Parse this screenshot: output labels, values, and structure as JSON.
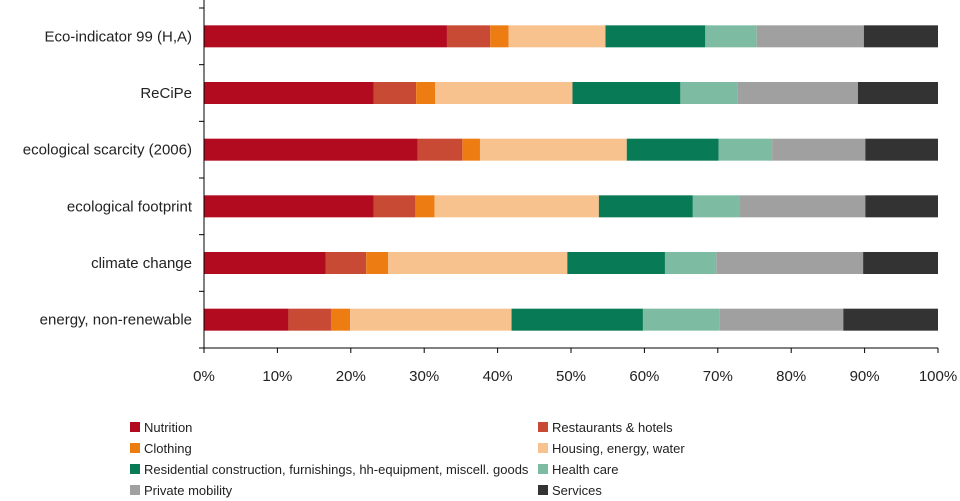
{
  "chart_data": {
    "type": "bar",
    "orientation": "horizontal",
    "stacked": "percent",
    "categories": [
      "Eco-indicator 99 (H,A)",
      "ReCiPe",
      "ecological scarcity (2006)",
      "ecological footprint",
      "climate change",
      "energy, non-renewable"
    ],
    "series": [
      {
        "name": "Nutrition",
        "color": "#b20a1e",
        "values": [
          33.1,
          23.1,
          29.1,
          23.1,
          16.6,
          11.5
        ]
      },
      {
        "name": "Restaurants & hotels",
        "color": "#c84a35",
        "values": [
          5.9,
          5.8,
          6.1,
          5.7,
          5.5,
          5.8
        ]
      },
      {
        "name": "Clothing",
        "color": "#ed7d12",
        "values": [
          2.5,
          2.6,
          2.4,
          2.6,
          3.0,
          2.6
        ]
      },
      {
        "name": "Housing, energy, water",
        "color": "#f7c28e",
        "values": [
          13.2,
          18.7,
          20.0,
          22.4,
          24.4,
          22.0
        ]
      },
      {
        "name": "Residential construction, furnishings, hh-equipment, miscell. goods",
        "color": "#087a55",
        "values": [
          13.6,
          14.7,
          12.5,
          12.8,
          13.3,
          17.9
        ]
      },
      {
        "name": "Health care",
        "color": "#7dbba3",
        "values": [
          7.0,
          7.8,
          7.3,
          6.3,
          7.0,
          10.4
        ]
      },
      {
        "name": "Private mobility",
        "color": "#a0a0a0",
        "values": [
          14.6,
          16.4,
          12.7,
          17.2,
          20.0,
          16.9
        ]
      },
      {
        "name": "Services",
        "color": "#333333",
        "values": [
          10.1,
          10.9,
          9.9,
          9.9,
          10.2,
          12.9
        ]
      }
    ],
    "xlim": [
      0,
      100
    ],
    "ticks": [
      "0%",
      "10%",
      "20%",
      "30%",
      "40%",
      "50%",
      "60%",
      "70%",
      "80%",
      "90%",
      "100%"
    ],
    "grid": false,
    "legend_position": "bottom",
    "xlabel": "",
    "ylabel": "",
    "title": ""
  }
}
